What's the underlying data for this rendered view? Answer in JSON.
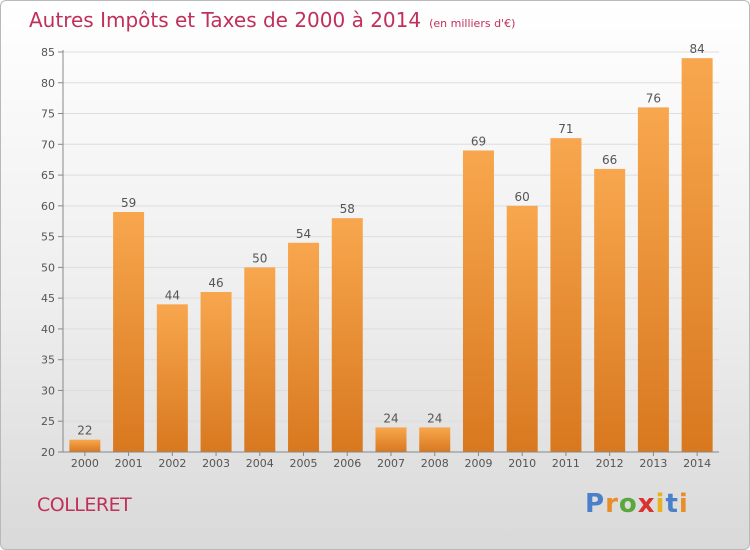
{
  "title": "Autres Impôts et Taxes de 2000 à 2014",
  "subtitle": "(en milliers d'€)",
  "commune": "COLLERET",
  "logo": {
    "text": "Proxiti",
    "letter_colors": [
      "#4a7fc9",
      "#e98c2a",
      "#5aa83c",
      "#d9332f",
      "#e8b21e",
      "#4a7fc9",
      "#e98c2a"
    ]
  },
  "colors": {
    "bar_top": "#f8a74e",
    "bar_bottom": "#d8781f",
    "grid": "#dddddd",
    "axis": "#888888",
    "text": "#555555",
    "title": "#c0305a"
  },
  "chart_data": {
    "type": "bar",
    "title": "Autres Impôts et Taxes de 2000 à 2014",
    "subtitle": "(en milliers d'€)",
    "xlabel": "",
    "ylabel": "",
    "categories": [
      "2000",
      "2001",
      "2002",
      "2003",
      "2004",
      "2005",
      "2006",
      "2007",
      "2008",
      "2009",
      "2010",
      "2011",
      "2012",
      "2013",
      "2014"
    ],
    "values": [
      22,
      59,
      44,
      46,
      50,
      54,
      58,
      24,
      24,
      69,
      60,
      71,
      66,
      76,
      84
    ],
    "ylim": [
      20,
      85
    ],
    "yticks": [
      20,
      25,
      30,
      35,
      40,
      45,
      50,
      55,
      60,
      65,
      70,
      75,
      80,
      85
    ],
    "grid": true,
    "data_labels": true,
    "legend": "none"
  }
}
